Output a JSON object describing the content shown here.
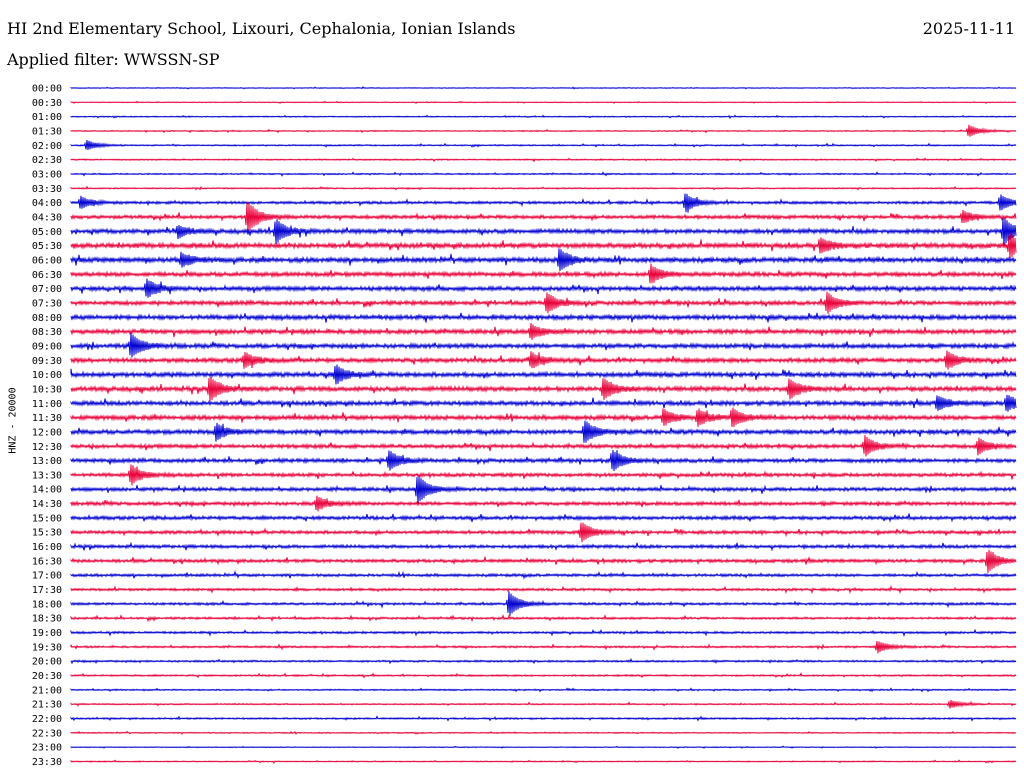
{
  "header": {
    "title": "HI 2nd Elementary School, Lixouri, Cephalonia, Ionian Islands",
    "date": "2025-11-11",
    "filter": "Applied filter: WWSSN-SP"
  },
  "chart_data": {
    "type": "line",
    "title": "HI 2nd Elementary School, Lixouri, Cephalonia, Ionian Islands",
    "ylabel": "HNZ - 20000",
    "xlabel": "",
    "row_labels": [
      "00:00",
      "00:30",
      "01:00",
      "01:30",
      "02:00",
      "02:30",
      "03:00",
      "03:30",
      "04:00",
      "04:30",
      "05:00",
      "05:30",
      "06:00",
      "06:30",
      "07:00",
      "07:30",
      "08:00",
      "08:30",
      "09:00",
      "09:30",
      "10:00",
      "10:30",
      "11:00",
      "11:30",
      "12:00",
      "12:30",
      "13:00",
      "13:30",
      "14:00",
      "14:30",
      "15:00",
      "15:30",
      "16:00",
      "16:30",
      "17:00",
      "17:30",
      "18:00",
      "18:30",
      "19:00",
      "19:30",
      "20:00",
      "20:30",
      "21:00",
      "21:30",
      "22:00",
      "22:30",
      "23:00",
      "23:30"
    ],
    "trace_colors": [
      "#0000d0",
      "#e8003a"
    ],
    "noise_level": [
      0.3,
      0.3,
      0.4,
      0.4,
      0.5,
      0.5,
      0.5,
      0.5,
      1.0,
      1.3,
      1.6,
      1.8,
      1.8,
      1.6,
      1.6,
      1.5,
      1.7,
      1.6,
      1.6,
      1.6,
      1.7,
      1.7,
      1.6,
      1.6,
      1.6,
      1.4,
      1.4,
      1.3,
      1.3,
      1.3,
      1.3,
      1.2,
      1.2,
      1.2,
      1.0,
      0.9,
      0.9,
      0.8,
      0.8,
      0.7,
      0.7,
      0.6,
      0.5,
      0.5,
      0.6,
      0.4,
      0.3,
      0.4
    ],
    "events": [
      {
        "row": 3,
        "minute": 28.5,
        "amp": 6
      },
      {
        "row": 4,
        "minute": 0.5,
        "amp": 5
      },
      {
        "row": 8,
        "minute": 0.3,
        "amp": 6
      },
      {
        "row": 8,
        "minute": 19.5,
        "amp": 9
      },
      {
        "row": 8,
        "minute": 29.5,
        "amp": 8
      },
      {
        "row": 9,
        "minute": 5.6,
        "amp": 16
      },
      {
        "row": 9,
        "minute": 28.3,
        "amp": 6
      },
      {
        "row": 10,
        "minute": 6.5,
        "amp": 12
      },
      {
        "row": 10,
        "minute": 29.6,
        "amp": 14
      },
      {
        "row": 10,
        "minute": 3.4,
        "amp": 6
      },
      {
        "row": 11,
        "minute": 29.8,
        "amp": 12
      },
      {
        "row": 11,
        "minute": 23.8,
        "amp": 7
      },
      {
        "row": 12,
        "minute": 15.5,
        "amp": 11
      },
      {
        "row": 12,
        "minute": 3.5,
        "amp": 7
      },
      {
        "row": 13,
        "minute": 18.4,
        "amp": 9
      },
      {
        "row": 14,
        "minute": 2.4,
        "amp": 9
      },
      {
        "row": 15,
        "minute": 15.1,
        "amp": 10
      },
      {
        "row": 15,
        "minute": 24.0,
        "amp": 10
      },
      {
        "row": 17,
        "minute": 14.6,
        "amp": 7
      },
      {
        "row": 18,
        "minute": 1.9,
        "amp": 12
      },
      {
        "row": 19,
        "minute": 5.5,
        "amp": 8
      },
      {
        "row": 19,
        "minute": 14.6,
        "amp": 8
      },
      {
        "row": 19,
        "minute": 27.8,
        "amp": 9
      },
      {
        "row": 20,
        "minute": 8.4,
        "amp": 9
      },
      {
        "row": 21,
        "minute": 4.4,
        "amp": 12
      },
      {
        "row": 21,
        "minute": 16.9,
        "amp": 11
      },
      {
        "row": 21,
        "minute": 22.8,
        "amp": 10
      },
      {
        "row": 22,
        "minute": 27.5,
        "amp": 7
      },
      {
        "row": 22,
        "minute": 29.7,
        "amp": 8
      },
      {
        "row": 23,
        "minute": 18.8,
        "amp": 8
      },
      {
        "row": 23,
        "minute": 19.9,
        "amp": 8
      },
      {
        "row": 23,
        "minute": 21.0,
        "amp": 9
      },
      {
        "row": 24,
        "minute": 4.6,
        "amp": 8
      },
      {
        "row": 24,
        "minute": 16.3,
        "amp": 11
      },
      {
        "row": 25,
        "minute": 25.2,
        "amp": 10
      },
      {
        "row": 25,
        "minute": 28.8,
        "amp": 8
      },
      {
        "row": 26,
        "minute": 10.1,
        "amp": 10
      },
      {
        "row": 26,
        "minute": 17.2,
        "amp": 10
      },
      {
        "row": 27,
        "minute": 1.9,
        "amp": 10
      },
      {
        "row": 28,
        "minute": 11.0,
        "amp": 14
      },
      {
        "row": 29,
        "minute": 7.8,
        "amp": 7
      },
      {
        "row": 31,
        "minute": 16.2,
        "amp": 10
      },
      {
        "row": 33,
        "minute": 29.1,
        "amp": 11
      },
      {
        "row": 36,
        "minute": 13.9,
        "amp": 12
      },
      {
        "row": 39,
        "minute": 25.6,
        "amp": 6
      },
      {
        "row": 43,
        "minute": 27.9,
        "amp": 4
      }
    ]
  }
}
